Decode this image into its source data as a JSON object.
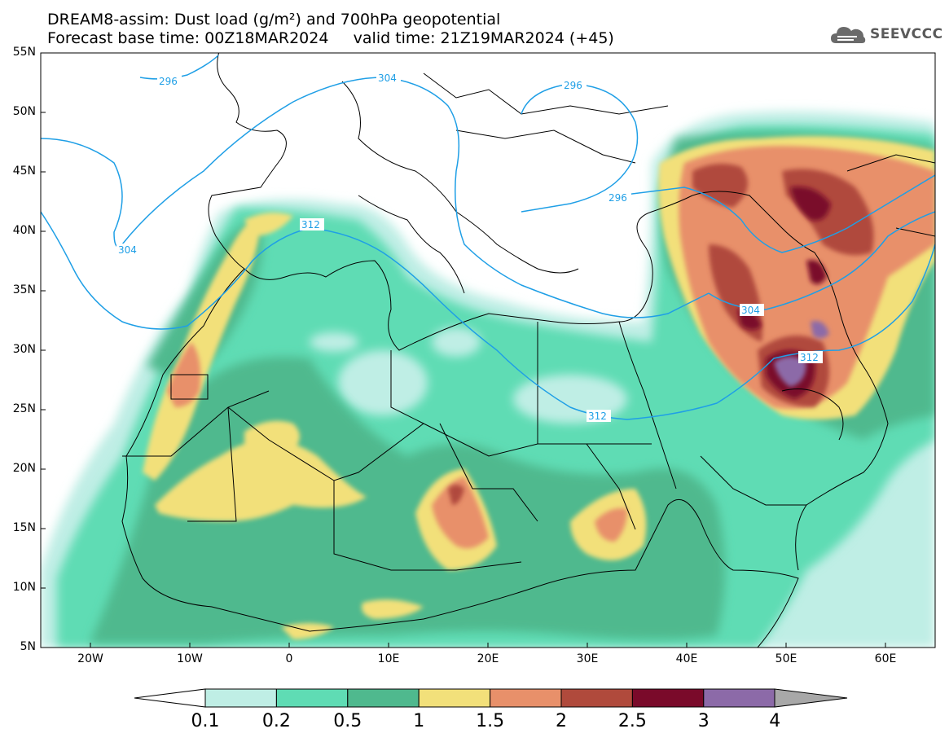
{
  "title": {
    "line1": "DREAM8-assim: Dust load (g/m²) and 700hPa geopotential",
    "line2": "Forecast base time: 00Z18MAR2024     valid time: 21Z19MAR2024 (+45)"
  },
  "logo": {
    "text": "SEEVCCC",
    "icon": "cloud-icon"
  },
  "map": {
    "projection": "lat-lon",
    "lon_range": [
      -25,
      65
    ],
    "lat_range": [
      5,
      55
    ],
    "lat_labels": [
      "55N",
      "50N",
      "45N",
      "40N",
      "35N",
      "30N",
      "25N",
      "20N",
      "15N",
      "10N",
      "5N"
    ],
    "lon_labels": [
      "20W",
      "10W",
      "0",
      "10E",
      "20E",
      "30E",
      "40E",
      "50E",
      "60E"
    ],
    "contour_labels": [
      "296",
      "304",
      "296",
      "304",
      "312",
      "296",
      "304",
      "312",
      "312"
    ]
  },
  "colorbar": {
    "labels": [
      "0.1",
      "0.2",
      "0.5",
      "1",
      "1.5",
      "2",
      "2.5",
      "3",
      "4"
    ],
    "colors": [
      "#ffffff",
      "#bfeee5",
      "#5fdcb4",
      "#4fb98e",
      "#f2e07a",
      "#e8906a",
      "#b04a3c",
      "#7a0a2a",
      "#8c6aa8",
      "#a8a8a8"
    ]
  },
  "colors": {
    "contour": "#1f9fe6",
    "border": "#000000"
  }
}
